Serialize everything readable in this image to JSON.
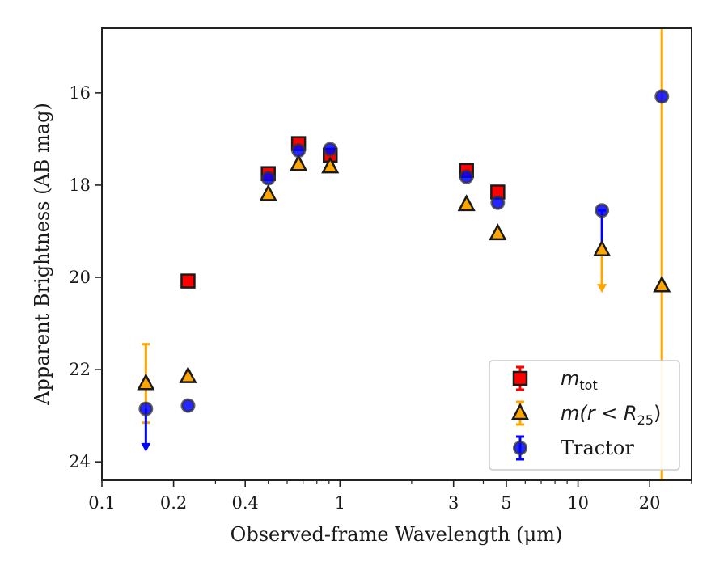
{
  "chart_data": {
    "type": "scatter",
    "title": "",
    "xlabel": "Observed-frame Wavelength (μm)",
    "ylabel": "Apparent Brightness (AB mag)",
    "xscale": "log",
    "xlim": [
      0.1,
      30
    ],
    "ylim": [
      24.4,
      14.6
    ],
    "y_inverted": true,
    "xticks": [
      {
        "value": 0.1,
        "label": "0.1"
      },
      {
        "value": 0.2,
        "label": "0.2"
      },
      {
        "value": 0.4,
        "label": "0.4"
      },
      {
        "value": 1,
        "label": "1"
      },
      {
        "value": 3,
        "label": "3"
      },
      {
        "value": 5,
        "label": "5"
      },
      {
        "value": 10,
        "label": "10"
      },
      {
        "value": 20,
        "label": "20"
      }
    ],
    "yticks": [
      {
        "value": 16,
        "label": "16"
      },
      {
        "value": 18,
        "label": "18"
      },
      {
        "value": 20,
        "label": "20"
      },
      {
        "value": 22,
        "label": "22"
      },
      {
        "value": 24,
        "label": "24"
      }
    ],
    "legend_position": "lower-right",
    "series": [
      {
        "name": "m_tot",
        "legend_main": "m",
        "legend_sub": "tot",
        "marker": "square",
        "color": "#ff0000",
        "points": [
          {
            "x": 0.23,
            "y": 20.08
          },
          {
            "x": 0.5,
            "y": 17.75
          },
          {
            "x": 0.67,
            "y": 17.1
          },
          {
            "x": 0.91,
            "y": 17.35
          },
          {
            "x": 3.4,
            "y": 17.68
          },
          {
            "x": 4.6,
            "y": 18.15
          }
        ]
      },
      {
        "name": "m(r < R_25)",
        "legend_main": "m(r < R",
        "legend_sub": "25",
        "legend_end": ")",
        "marker": "triangle",
        "color": "#ffa500",
        "points": [
          {
            "x": 0.153,
            "y": 22.3,
            "err_low": 21.45,
            "err_high": 23.15
          },
          {
            "x": 0.23,
            "y": 22.15
          },
          {
            "x": 0.5,
            "y": 18.2
          },
          {
            "x": 0.67,
            "y": 17.55
          },
          {
            "x": 0.91,
            "y": 17.6
          },
          {
            "x": 3.4,
            "y": 18.42
          },
          {
            "x": 4.6,
            "y": 19.05
          },
          {
            "x": 12.6,
            "y": 19.4,
            "upper_limit_arrow_to": 20.3
          },
          {
            "x": 22.5,
            "y": 20.18,
            "err_low": 14.6,
            "err_high": 24.4
          }
        ]
      },
      {
        "name": "Tractor",
        "legend_main": "Tractor",
        "marker": "circle",
        "color": "#0000ff",
        "points": [
          {
            "x": 0.153,
            "y": 22.85,
            "upper_limit_arrow_to": 23.75
          },
          {
            "x": 0.23,
            "y": 22.78
          },
          {
            "x": 0.5,
            "y": 17.85
          },
          {
            "x": 0.67,
            "y": 17.25
          },
          {
            "x": 0.91,
            "y": 17.22
          },
          {
            "x": 3.4,
            "y": 17.82
          },
          {
            "x": 4.6,
            "y": 18.38
          },
          {
            "x": 12.6,
            "y": 18.55,
            "err_low": 18.55,
            "err_high": 19.4
          },
          {
            "x": 22.5,
            "y": 16.08
          }
        ]
      }
    ]
  }
}
